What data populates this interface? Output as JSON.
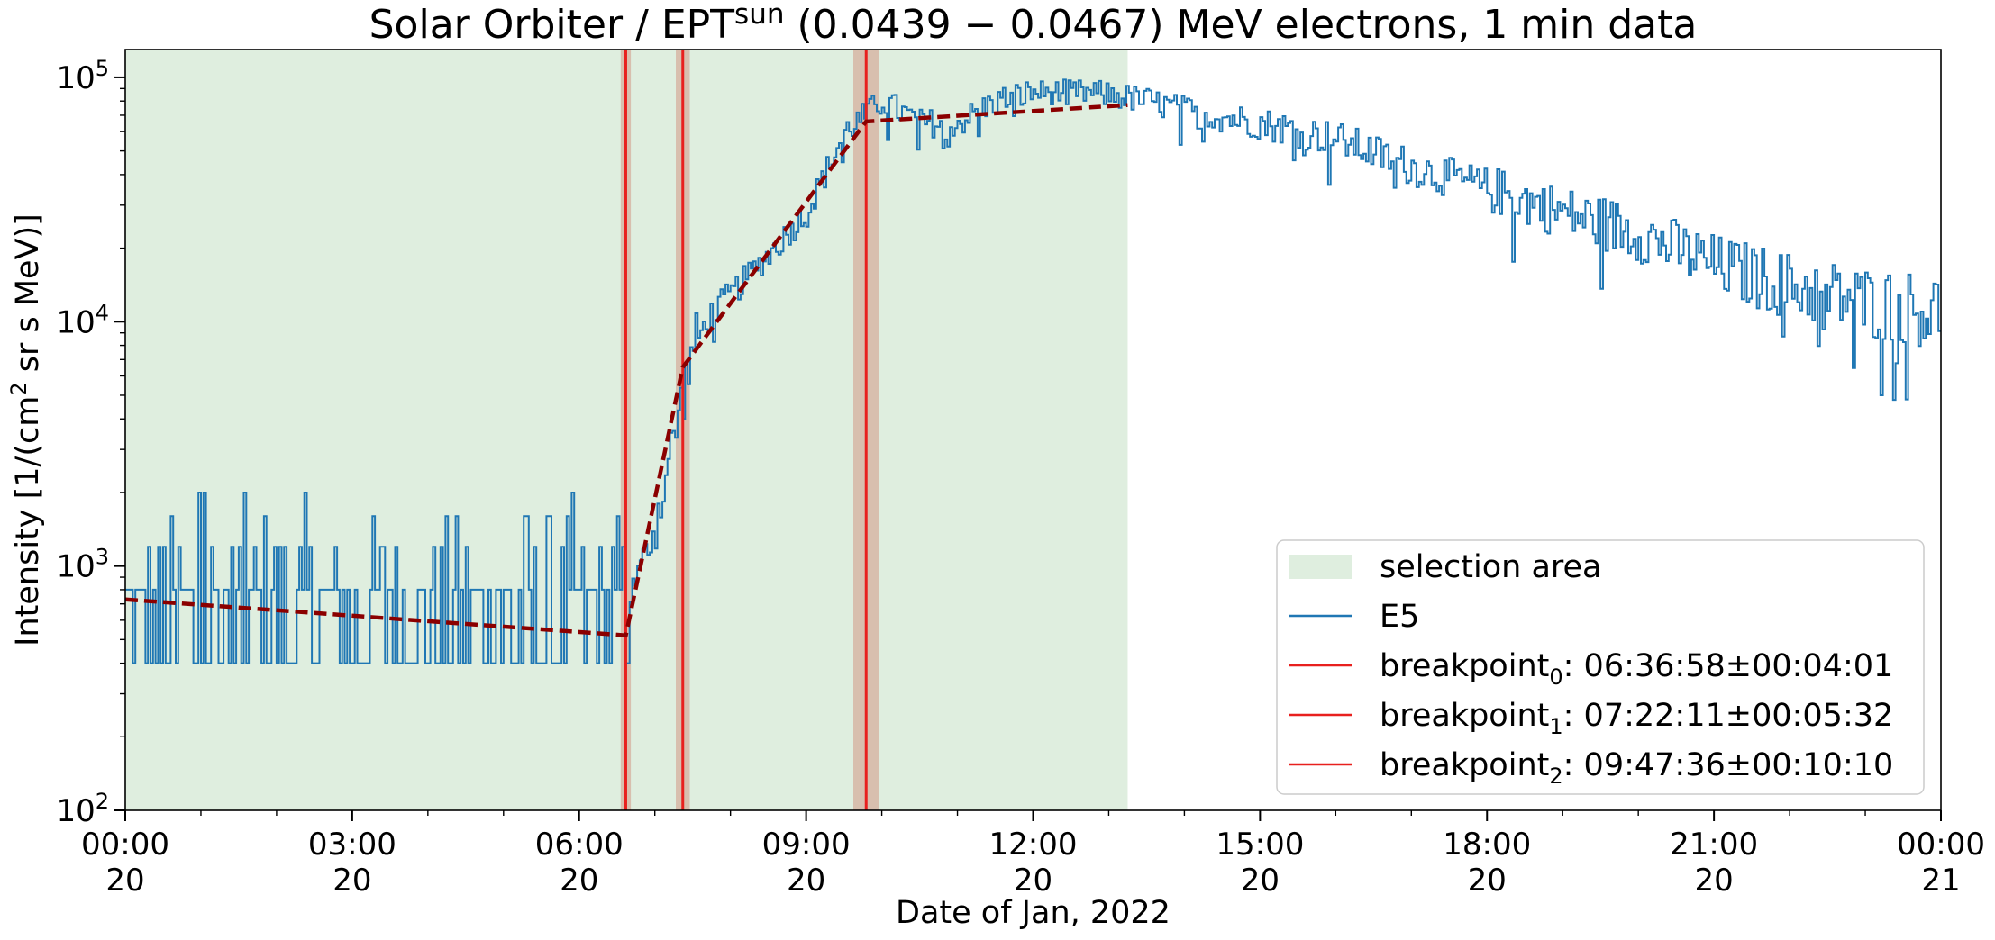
{
  "chart_data": {
    "type": "line",
    "title_main": "Solar Orbiter / EPT",
    "title_sup": "sun",
    "title_rest": " (0.0439 − 0.0467) MeV electrons, 1 min data",
    "ylabel_pre": "Intensity [1/(cm",
    "ylabel_sup": "2",
    "ylabel_post": " sr s MeV)]",
    "xlabel": "Date of Jan, 2022",
    "yscale": "log",
    "ylim": [
      100,
      130000
    ],
    "xlim": [
      "2022-01-20 00:00",
      "2022-01-21 00:00"
    ],
    "yticks": [
      {
        "value": 100,
        "base": "10",
        "exp": "2"
      },
      {
        "value": 1000,
        "base": "10",
        "exp": "3"
      },
      {
        "value": 10000,
        "base": "10",
        "exp": "4"
      },
      {
        "value": 100000,
        "base": "10",
        "exp": "5"
      }
    ],
    "xticks": [
      {
        "hour": 0,
        "time": "00:00",
        "day": "20"
      },
      {
        "hour": 3,
        "time": "03:00",
        "day": "20"
      },
      {
        "hour": 6,
        "time": "06:00",
        "day": "20"
      },
      {
        "hour": 9,
        "time": "09:00",
        "day": "20"
      },
      {
        "hour": 12,
        "time": "12:00",
        "day": "20"
      },
      {
        "hour": 15,
        "time": "15:00",
        "day": "20"
      },
      {
        "hour": 18,
        "time": "18:00",
        "day": "20"
      },
      {
        "hour": 21,
        "time": "21:00",
        "day": "20"
      },
      {
        "hour": 24,
        "time": "00:00",
        "day": "21"
      }
    ],
    "selection_area": {
      "start": "2022-01-20 00:00",
      "end": "2022-01-20 13:15",
      "color": "#dfeedf"
    },
    "series": [
      {
        "name": "E5",
        "color": "#1f77b4",
        "x": [
          "2022-01-20 00:00",
          "2022-01-20 01:00",
          "2022-01-20 02:00",
          "2022-01-20 03:00",
          "2022-01-20 04:00",
          "2022-01-20 05:00",
          "2022-01-20 06:00",
          "2022-01-20 06:30",
          "2022-01-20 06:45",
          "2022-01-20 07:00",
          "2022-01-20 07:15",
          "2022-01-20 07:30",
          "2022-01-20 07:45",
          "2022-01-20 08:00",
          "2022-01-20 08:30",
          "2022-01-20 09:00",
          "2022-01-20 09:30",
          "2022-01-20 10:00",
          "2022-01-20 10:30",
          "2022-01-20 11:00",
          "2022-01-20 11:30",
          "2022-01-20 12:00",
          "2022-01-20 12:30",
          "2022-01-20 13:00",
          "2022-01-20 13:30",
          "2022-01-20 14:00",
          "2022-01-20 15:00",
          "2022-01-20 16:00",
          "2022-01-20 17:00",
          "2022-01-20 18:00",
          "2022-01-20 19:00",
          "2022-01-20 20:00",
          "2022-01-20 21:00",
          "2022-01-20 22:00",
          "2022-01-20 23:00",
          "2022-01-21 00:00"
        ],
        "y": [
          700,
          650,
          620,
          600,
          600,
          590,
          580,
          560,
          900,
          1500,
          3500,
          8000,
          11000,
          13000,
          19000,
          28000,
          60000,
          80000,
          65000,
          65000,
          80000,
          87000,
          87000,
          85000,
          80000,
          73000,
          65000,
          56000,
          43000,
          35000,
          28000,
          23000,
          17000,
          14000,
          12000,
          11000
        ]
      }
    ],
    "fit": {
      "name": "fit",
      "color": "#8b0000",
      "x": [
        "2022-01-20 00:00",
        "2022-01-20 06:36:58",
        "2022-01-20 07:22:11",
        "2022-01-20 09:47:36",
        "2022-01-20 13:15"
      ],
      "y": [
        730,
        520,
        6500,
        66000,
        77000
      ]
    },
    "breakpoints": [
      {
        "label_base": "breakpoint",
        "sub": "0",
        "label_rest": ": 06:36:58±00:04:01",
        "time": "2022-01-20 06:36:58",
        "err_minutes": 4.02,
        "color": "#e8201e"
      },
      {
        "label_base": "breakpoint",
        "sub": "1",
        "label_rest": ": 07:22:11±00:05:32",
        "time": "2022-01-20 07:22:11",
        "err_minutes": 5.53,
        "color": "#e8201e"
      },
      {
        "label_base": "breakpoint",
        "sub": "2",
        "label_rest": ": 09:47:36±00:10:10",
        "time": "2022-01-20 09:47:36",
        "err_minutes": 10.17,
        "color": "#e8201e"
      }
    ],
    "legend": {
      "placement": "lower-right",
      "entries": [
        "selection area",
        "E5",
        "breakpoint0",
        "breakpoint1",
        "breakpoint2"
      ]
    },
    "grid": false
  }
}
